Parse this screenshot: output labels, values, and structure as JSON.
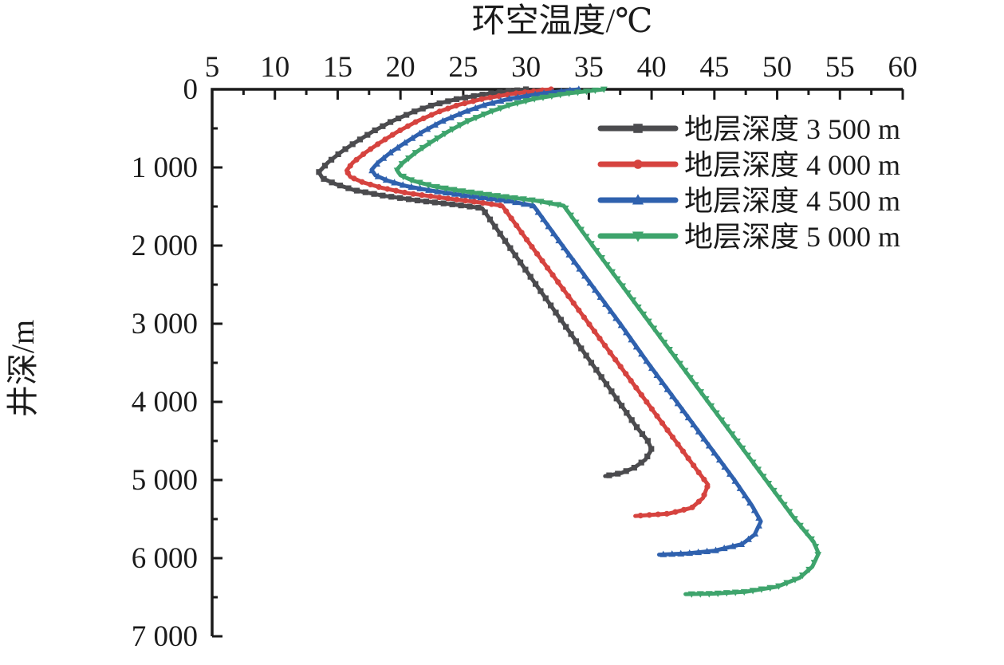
{
  "figure": {
    "background": "#ffffff",
    "axis_color": "#1a1a1a",
    "text_color": "#1b1b1b"
  },
  "chart_data": {
    "type": "line",
    "title": "环空温度/℃",
    "xlabel": "环空温度/℃",
    "ylabel": "井深/m",
    "grid": "off",
    "x_axis": {
      "side": "top",
      "min": 5,
      "max": 60,
      "major_ticks": [
        5,
        10,
        15,
        20,
        25,
        30,
        35,
        40,
        45,
        50,
        55,
        60
      ],
      "minor_step": 2.5,
      "unit": "°C"
    },
    "y_axis": {
      "side": "left",
      "min": 0,
      "max": 7000,
      "direction": "increasing-downward",
      "major_ticks": [
        {
          "value": 0,
          "label": "0"
        },
        {
          "value": 1000,
          "label": "1 000"
        },
        {
          "value": 2000,
          "label": "2 000"
        },
        {
          "value": 3000,
          "label": "3 000"
        },
        {
          "value": 4000,
          "label": "4 000"
        },
        {
          "value": 5000,
          "label": "5 000"
        },
        {
          "value": 6000,
          "label": "6 000"
        },
        {
          "value": 7000,
          "label": "7 000"
        }
      ],
      "minor_step": 500,
      "unit": "m"
    },
    "legend": {
      "position": "top-right-inside",
      "border": "none"
    },
    "series": [
      {
        "key": "formation-3500",
        "name": "地层深度 3 500 m",
        "color": "#4b4b4e",
        "marker": "square",
        "points_format": "[temperature_C, depth_m]",
        "points": [
          [
            30.0,
            0
          ],
          [
            27.0,
            55
          ],
          [
            24.6,
            120
          ],
          [
            22.6,
            200
          ],
          [
            21.0,
            290
          ],
          [
            19.3,
            410
          ],
          [
            17.8,
            540
          ],
          [
            16.4,
            680
          ],
          [
            15.2,
            810
          ],
          [
            14.2,
            940
          ],
          [
            13.5,
            1060
          ],
          [
            13.8,
            1140
          ],
          [
            14.8,
            1210
          ],
          [
            16.3,
            1290
          ],
          [
            18.6,
            1360
          ],
          [
            21.5,
            1425
          ],
          [
            24.3,
            1475
          ],
          [
            26.5,
            1520
          ],
          [
            28.6,
            2000
          ],
          [
            30.8,
            2500
          ],
          [
            33.0,
            3000
          ],
          [
            35.2,
            3500
          ],
          [
            37.4,
            4000
          ],
          [
            38.8,
            4320
          ],
          [
            39.7,
            4500
          ],
          [
            40.0,
            4610
          ],
          [
            39.5,
            4740
          ],
          [
            38.6,
            4845
          ],
          [
            37.6,
            4910
          ],
          [
            36.3,
            4950
          ]
        ]
      },
      {
        "key": "formation-4000",
        "name": "地层深度 4 000 m",
        "color": "#d6433f",
        "marker": "circle",
        "points_format": "[temperature_C, depth_m]",
        "points": [
          [
            32.0,
            0
          ],
          [
            29.0,
            55
          ],
          [
            26.6,
            120
          ],
          [
            24.6,
            200
          ],
          [
            23.0,
            290
          ],
          [
            21.3,
            410
          ],
          [
            19.8,
            540
          ],
          [
            18.4,
            680
          ],
          [
            17.2,
            810
          ],
          [
            16.2,
            940
          ],
          [
            15.7,
            1040
          ],
          [
            16.0,
            1120
          ],
          [
            17.0,
            1190
          ],
          [
            18.5,
            1260
          ],
          [
            20.6,
            1330
          ],
          [
            23.4,
            1390
          ],
          [
            26.2,
            1445
          ],
          [
            28.1,
            1490
          ],
          [
            30.4,
            2000
          ],
          [
            32.7,
            2500
          ],
          [
            35.0,
            3000
          ],
          [
            37.3,
            3500
          ],
          [
            39.6,
            4000
          ],
          [
            41.9,
            4500
          ],
          [
            43.6,
            4870
          ],
          [
            44.5,
            5060
          ],
          [
            44.1,
            5230
          ],
          [
            43.2,
            5355
          ],
          [
            41.4,
            5430
          ],
          [
            38.7,
            5460
          ]
        ]
      },
      {
        "key": "formation-4500",
        "name": "地层深度 4 500 m",
        "color": "#2f61ae",
        "marker": "triangle-up",
        "points_format": "[temperature_C, depth_m]",
        "points": [
          [
            34.2,
            0
          ],
          [
            31.2,
            55
          ],
          [
            28.7,
            120
          ],
          [
            26.7,
            200
          ],
          [
            25.1,
            290
          ],
          [
            23.3,
            410
          ],
          [
            21.8,
            540
          ],
          [
            20.4,
            680
          ],
          [
            19.2,
            810
          ],
          [
            18.2,
            940
          ],
          [
            17.7,
            1030
          ],
          [
            18.0,
            1100
          ],
          [
            19.0,
            1170
          ],
          [
            20.5,
            1240
          ],
          [
            22.6,
            1300
          ],
          [
            25.4,
            1365
          ],
          [
            28.6,
            1430
          ],
          [
            30.6,
            1490
          ],
          [
            32.9,
            2000
          ],
          [
            35.2,
            2500
          ],
          [
            37.5,
            3000
          ],
          [
            39.7,
            3500
          ],
          [
            42.0,
            4000
          ],
          [
            44.3,
            4500
          ],
          [
            46.6,
            5000
          ],
          [
            48.0,
            5330
          ],
          [
            48.7,
            5530
          ],
          [
            48.2,
            5700
          ],
          [
            47.2,
            5820
          ],
          [
            45.0,
            5905
          ],
          [
            42.8,
            5940
          ],
          [
            40.6,
            5955
          ]
        ]
      },
      {
        "key": "formation-5000",
        "name": "地层深度 5 000 m",
        "color": "#3ea46c",
        "marker": "triangle-down",
        "points_format": "[temperature_C, depth_m]",
        "points": [
          [
            36.2,
            0
          ],
          [
            33.2,
            55
          ],
          [
            30.7,
            120
          ],
          [
            28.7,
            200
          ],
          [
            27.1,
            290
          ],
          [
            25.3,
            410
          ],
          [
            23.8,
            540
          ],
          [
            22.4,
            680
          ],
          [
            21.2,
            810
          ],
          [
            20.2,
            940
          ],
          [
            19.7,
            1030
          ],
          [
            20.0,
            1100
          ],
          [
            21.0,
            1170
          ],
          [
            22.6,
            1240
          ],
          [
            24.8,
            1300
          ],
          [
            27.6,
            1360
          ],
          [
            30.8,
            1425
          ],
          [
            33.0,
            1490
          ],
          [
            35.3,
            2000
          ],
          [
            37.6,
            2500
          ],
          [
            39.9,
            3000
          ],
          [
            42.2,
            3500
          ],
          [
            44.5,
            4000
          ],
          [
            46.8,
            4500
          ],
          [
            49.1,
            5000
          ],
          [
            51.4,
            5500
          ],
          [
            52.9,
            5790
          ],
          [
            53.3,
            5940
          ],
          [
            52.8,
            6110
          ],
          [
            51.8,
            6250
          ],
          [
            50.0,
            6365
          ],
          [
            47.5,
            6430
          ],
          [
            44.8,
            6455
          ],
          [
            42.7,
            6460
          ]
        ]
      }
    ]
  }
}
